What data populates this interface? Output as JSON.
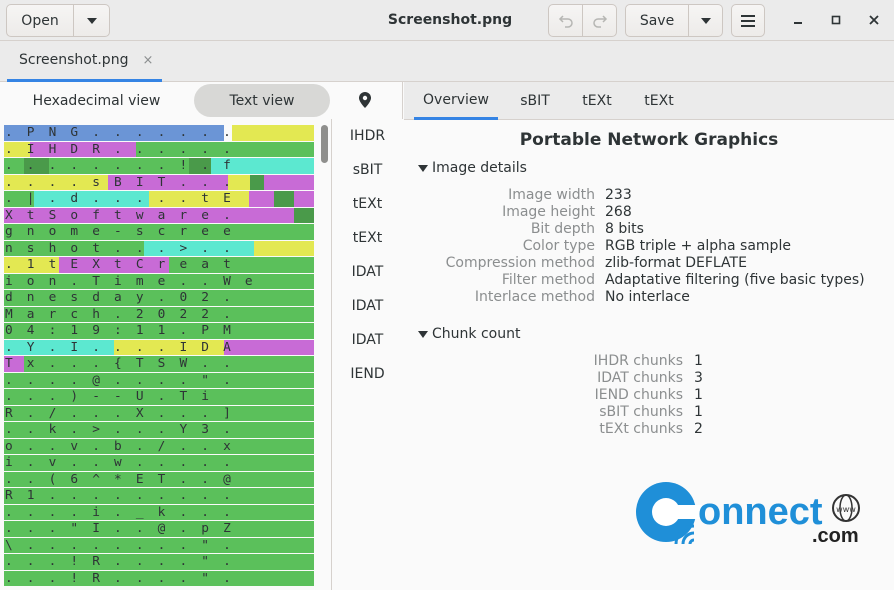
{
  "header": {
    "open_label": "Open",
    "title": "Screenshot.png",
    "save_label": "Save"
  },
  "tabs": [
    {
      "label": "Screenshot.png",
      "close": "×"
    }
  ],
  "left": {
    "hex_label": "Hexadecimal view",
    "text_label": "Text view",
    "text_rows": [
      ". P N G . . . . . . .",
      ". I H D R . . . . . .",
      ". . . . . . . . ! . f",
      ". . . . s B I T . . .",
      ". | . d . . . . . t E",
      "X t S o f t w a r e .",
      "g n o m e - s c r e e",
      "n s h o t . . . > . .",
      ". 1 t E X t C r e a t",
      "i o n . T i m e . . W e",
      "d n e s d a y . 0 2 .",
      "M a r c h . 2 0 2 2 .",
      "0 4 : 1 9 : 1 1 . P M",
      ". Y . I . . . . I D A",
      "T x . . . { T S W . .",
      ". . . . @ . . . . \" .",
      ". . . ) - - U . T i",
      "R . / . . . X . . . ]",
      ". . k . > . . . Y 3 .",
      "o . . v . b . / . . x",
      "i . v . . w . . . . .",
      ". . ( 6 ^ * E T . . @",
      "R 1 . . . . . . . . .",
      ". . . . i . _ k . . .",
      ". . . \" I . . @ . p Z",
      "\\ . . . . . . . . \" .",
      ". . . ! R . . . . \" .",
      ". . . ! R . . . . \" ."
    ],
    "chunks": [
      "IHDR",
      "sBIT",
      "tEXt",
      "tEXt",
      "IDAT",
      "IDAT",
      "IDAT",
      "IEND"
    ]
  },
  "right": {
    "tabs": [
      "Overview",
      "sBIT",
      "tEXt",
      "tEXt"
    ],
    "heading": "Portable Network Graphics",
    "image_details_label": "Image details",
    "image_details": [
      {
        "key": "Image width",
        "value": "233"
      },
      {
        "key": "Image height",
        "value": "268"
      },
      {
        "key": "Bit depth",
        "value": "8 bits"
      },
      {
        "key": "Color type",
        "value": "RGB triple + alpha sample"
      },
      {
        "key": "Compression method",
        "value": "zlib-format DEFLATE"
      },
      {
        "key": "Filter method",
        "value": "Adaptative filtering (five basic types)"
      },
      {
        "key": "Interlace method",
        "value": "No interlace"
      }
    ],
    "chunk_count_label": "Chunk count",
    "chunk_counts": [
      {
        "key": "IHDR chunks",
        "value": "1"
      },
      {
        "key": "IDAT chunks",
        "value": "3"
      },
      {
        "key": "IEND chunks",
        "value": "1"
      },
      {
        "key": "sBIT chunks",
        "value": "1"
      },
      {
        "key": "tEXt chunks",
        "value": "2"
      }
    ]
  },
  "watermark": {
    "brand": "onnect",
    "domain": ".com",
    "globe_text": "www",
    "color": "#1f8fd8"
  },
  "colors": {
    "accent": "#3584e4",
    "hex_blue": "#6b95d6",
    "hex_magenta": "#c86bd6",
    "hex_green": "#5bc05b",
    "hex_dark_green": "#4a9a4a",
    "hex_cyan": "#5ce8d0",
    "hex_yellow": "#e3e852"
  }
}
